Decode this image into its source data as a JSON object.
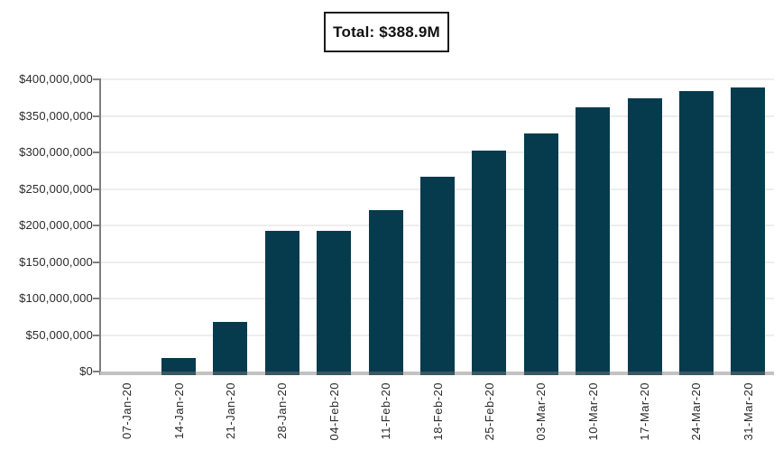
{
  "title_box": {
    "label": "Total: $388.9M"
  },
  "chart_data": {
    "type": "bar",
    "title": "Total: $388.9M",
    "categories": [
      "07-Jan-20",
      "14-Jan-20",
      "21-Jan-20",
      "28-Jan-20",
      "04-Feb-20",
      "11-Feb-20",
      "18-Feb-20",
      "25-Feb-20",
      "03-Mar-20",
      "10-Mar-20",
      "17-Mar-20",
      "24-Mar-20",
      "31-Mar-20"
    ],
    "values": [
      0,
      19000000,
      68000000,
      192000000,
      192000000,
      221000000,
      267000000,
      302000000,
      326000000,
      362000000,
      374000000,
      384000000,
      388900000
    ],
    "ylim": [
      0,
      400000000
    ],
    "ytick_step": 50000000,
    "ytick_labels_top_to_bottom": [
      "$400,000,000",
      "$350,000,000",
      "$300,000,000",
      "$250,000,000",
      "$200,000,000",
      "$150,000,000",
      "$100,000,000",
      "$50,000,000",
      "$0"
    ],
    "xlabel": "",
    "ylabel": "",
    "grid": true,
    "legend": "none",
    "colors": {
      "bar": "#053B4D",
      "bar_base": "#3A5763",
      "gridline": "#EDEDED",
      "axis": "#7F7F7F",
      "baseline": "#C2C2C2"
    }
  }
}
